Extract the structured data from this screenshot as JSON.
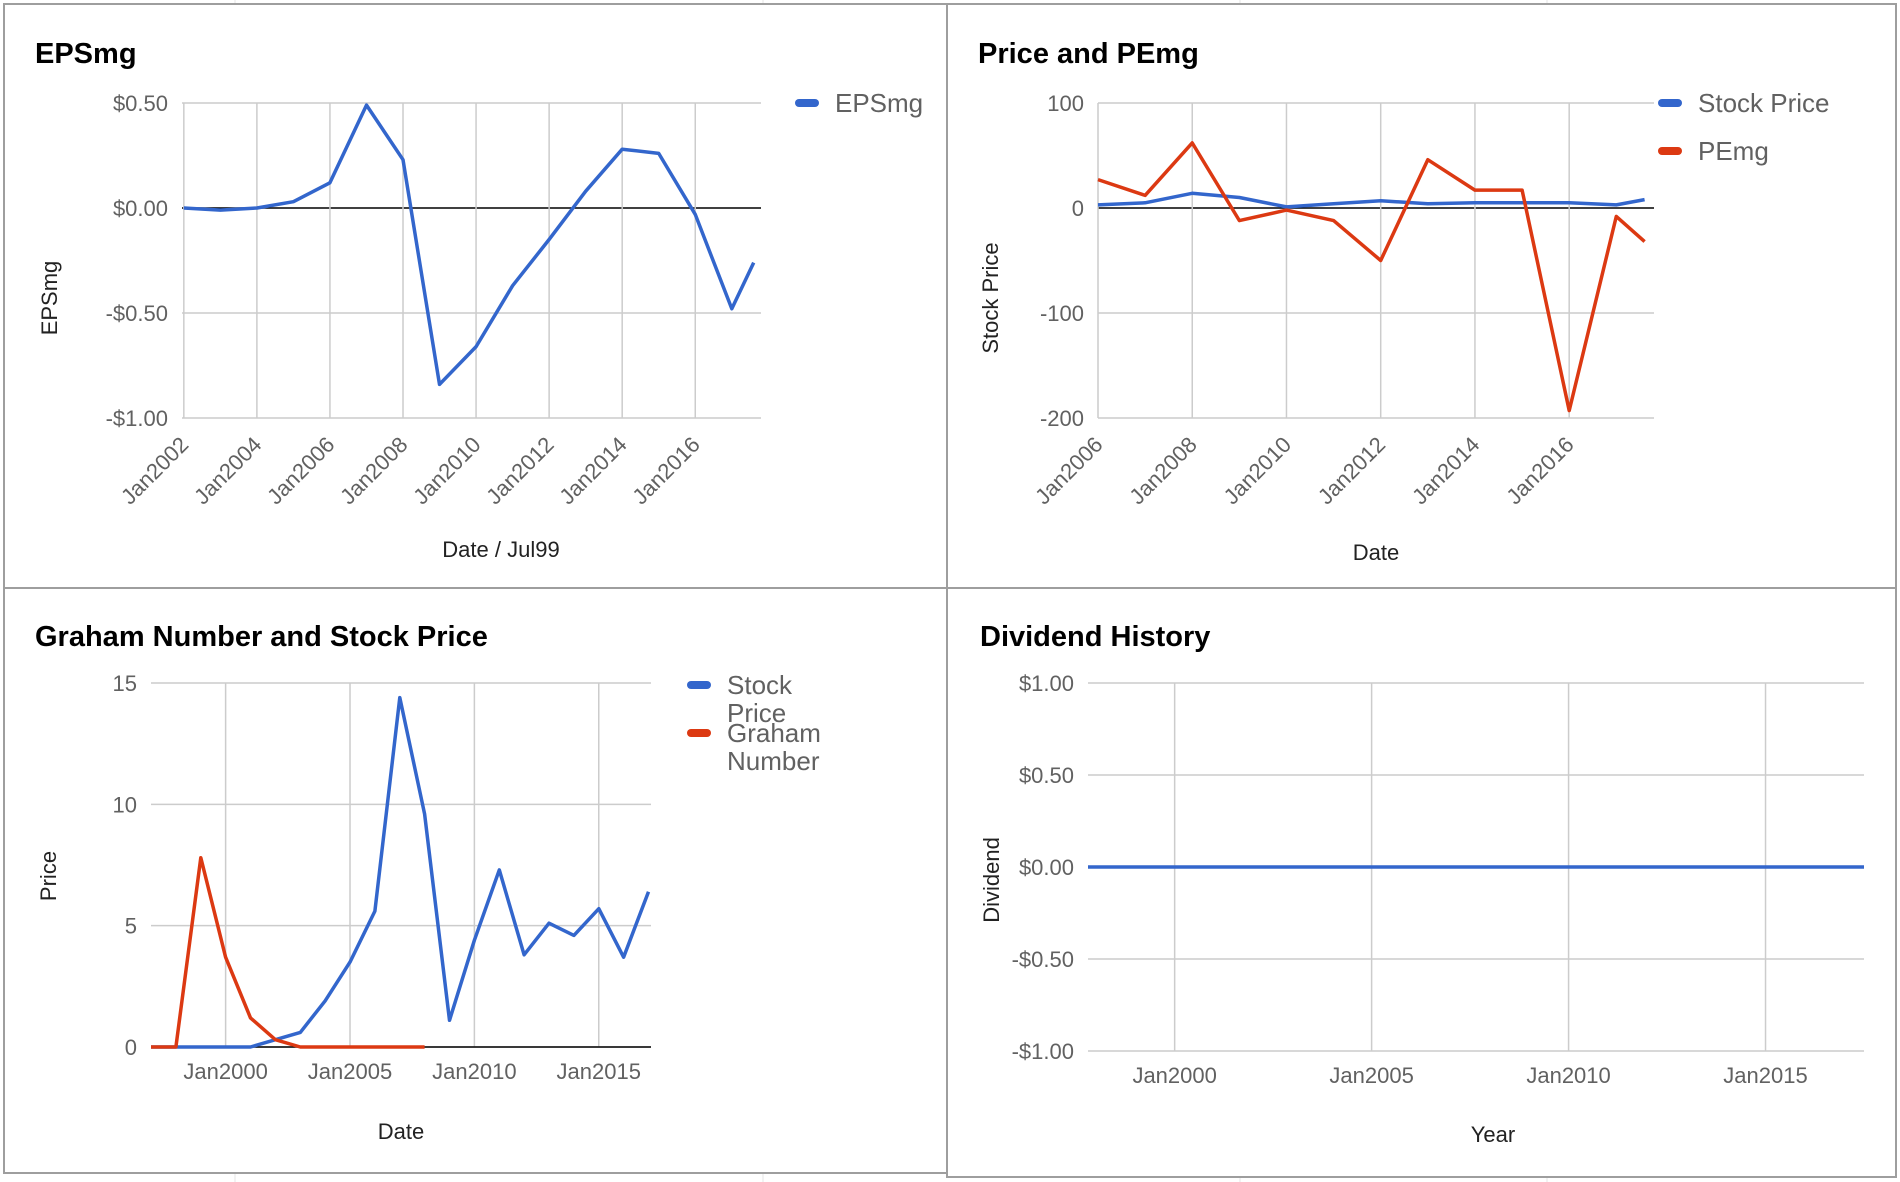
{
  "colors": {
    "blue": "#3366cc",
    "red": "#dc3912",
    "grid": "#cccccc",
    "zero": "#000000"
  },
  "chart_data": [
    {
      "type": "line",
      "title": "EPSmg",
      "xlabel": "Date / Jul99",
      "ylabel": "EPSmg",
      "ylim": [
        -1.0,
        0.5
      ],
      "xlim": [
        2001.95,
        2017.8
      ],
      "x_ticks": [
        2002,
        2004,
        2006,
        2008,
        2010,
        2012,
        2014,
        2016
      ],
      "x_tick_labels": [
        "Jan2002",
        "Jan2004",
        "Jan2006",
        "Jan2008",
        "Jan2010",
        "Jan2012",
        "Jan2014",
        "Jan2016"
      ],
      "y_ticks": [
        0.5,
        0.0,
        -0.5,
        -1.0
      ],
      "y_tick_labels": [
        "$0.50",
        "$0.00",
        "-$0.50",
        "-$1.00"
      ],
      "grid": true,
      "legend": "top-right",
      "series": [
        {
          "name": "EPSmg",
          "color": "#3366cc",
          "x": [
            2002,
            2003,
            2004,
            2005,
            2006,
            2007,
            2008,
            2009,
            2010,
            2011,
            2012,
            2013,
            2014,
            2015,
            2016,
            2017,
            2017.6
          ],
          "y": [
            0.0,
            -0.01,
            0.0,
            0.03,
            0.12,
            0.49,
            0.23,
            -0.84,
            -0.66,
            -0.37,
            -0.15,
            0.08,
            0.28,
            0.26,
            -0.03,
            -0.48,
            -0.26
          ]
        }
      ]
    },
    {
      "type": "line",
      "title": "Price and PEmg",
      "xlabel": "Date",
      "ylabel": "Stock Price",
      "ylim": [
        -200,
        100
      ],
      "xlim": [
        2006,
        2017.8
      ],
      "x_ticks": [
        2006,
        2008,
        2010,
        2012,
        2014,
        2016
      ],
      "x_tick_labels": [
        "Jan2006",
        "Jan2008",
        "Jan2010",
        "Jan2012",
        "Jan2014",
        "Jan2016"
      ],
      "y_ticks": [
        100,
        0,
        -100,
        -200
      ],
      "y_tick_labels": [
        "100",
        "0",
        "-100",
        "-200"
      ],
      "grid": true,
      "legend": "top-right",
      "series": [
        {
          "name": "Stock Price",
          "color": "#3366cc",
          "x": [
            2006,
            2007,
            2008,
            2009,
            2010,
            2011,
            2012,
            2013,
            2014,
            2015,
            2016,
            2017,
            2017.6
          ],
          "y": [
            3,
            5,
            14,
            10,
            1,
            4,
            7,
            4,
            5,
            5,
            5,
            3,
            8
          ]
        },
        {
          "name": "PEmg",
          "color": "#dc3912",
          "x": [
            2006,
            2007,
            2008,
            2009,
            2010,
            2011,
            2012,
            2013,
            2014,
            2015,
            2016,
            2017,
            2017.6
          ],
          "y": [
            27,
            12,
            62,
            -12,
            -2,
            -12,
            -50,
            46,
            17,
            17,
            -193,
            -8,
            -32
          ]
        }
      ]
    },
    {
      "type": "line",
      "title": "Graham Number and Stock Price",
      "xlabel": "Date",
      "ylabel": "Price",
      "ylim": [
        0,
        15
      ],
      "xlim": [
        1997,
        2017.1
      ],
      "x_ticks": [
        2000,
        2005,
        2010,
        2015
      ],
      "x_tick_labels": [
        "Jan2000",
        "Jan2005",
        "Jan2010",
        "Jan2015"
      ],
      "y_ticks": [
        15,
        10,
        5,
        0
      ],
      "y_tick_labels": [
        "15",
        "10",
        "5",
        "0"
      ],
      "grid": true,
      "legend": "top-right",
      "series": [
        {
          "name": "Stock Price",
          "color": "#3366cc",
          "x": [
            1997,
            1998,
            1999,
            2000,
            2001,
            2002,
            2003,
            2004,
            2005,
            2006,
            2007,
            2008,
            2009,
            2010,
            2011,
            2012,
            2013,
            2014,
            2015,
            2016,
            2017
          ],
          "y": [
            0,
            0,
            0,
            0,
            0,
            0.3,
            0.6,
            1.9,
            3.5,
            5.6,
            14.4,
            9.6,
            1.1,
            4.4,
            7.3,
            3.8,
            5.1,
            4.6,
            5.7,
            3.7,
            6.4
          ]
        },
        {
          "name": "Graham Number",
          "color": "#dc3912",
          "x": [
            1997,
            1998,
            1999,
            2000,
            2001,
            2002,
            2003,
            2004,
            2005,
            2006,
            2007,
            2008
          ],
          "y": [
            0,
            0,
            7.8,
            3.7,
            1.2,
            0.3,
            0,
            0,
            0,
            0,
            0,
            0
          ]
        }
      ]
    },
    {
      "type": "line",
      "title": "Dividend History",
      "xlabel": "Year",
      "ylabel": "Dividend",
      "ylim": [
        -1.0,
        1.0
      ],
      "xlim": [
        1997.8,
        2017.5
      ],
      "x_ticks": [
        2000,
        2005,
        2010,
        2015
      ],
      "x_tick_labels": [
        "Jan2000",
        "Jan2005",
        "Jan2010",
        "Jan2015"
      ],
      "y_ticks": [
        1.0,
        0.5,
        0.0,
        -0.5,
        -1.0
      ],
      "y_tick_labels": [
        "$1.00",
        "$0.50",
        "$0.00",
        "-$0.50",
        "-$1.00"
      ],
      "grid": true,
      "legend": "none",
      "series": [
        {
          "color": "#3366cc",
          "x": [
            1997.8,
            2000,
            2005,
            2010,
            2015,
            2017.5
          ],
          "y": [
            0,
            0,
            0,
            0,
            0,
            0
          ]
        }
      ]
    }
  ]
}
